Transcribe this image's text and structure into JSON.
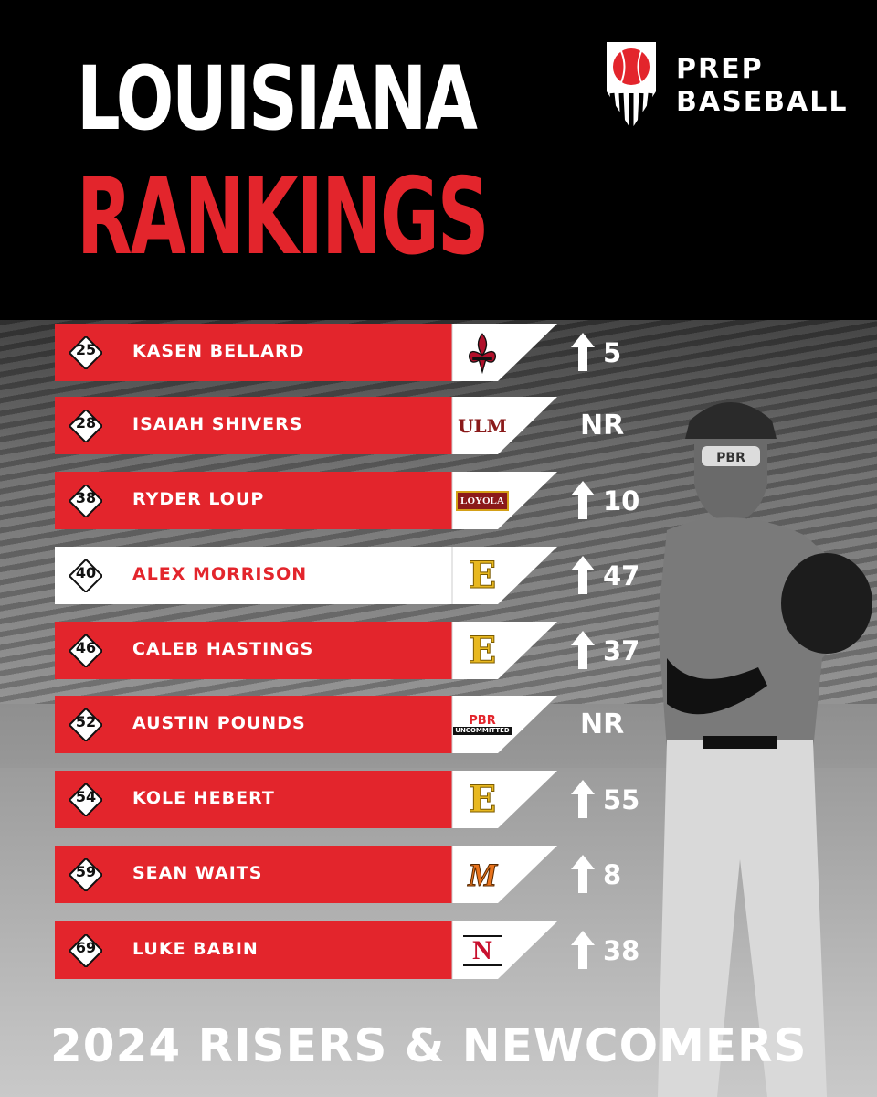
{
  "title": {
    "line1": "LOUISIANA",
    "line2": "RANKINGS"
  },
  "brand": {
    "line1": "PREP",
    "line2": "BASEBALL",
    "icon": "prep-baseball-logo"
  },
  "colors": {
    "accent": "#e3252c",
    "dark": "#000000",
    "white": "#ffffff"
  },
  "rankings": [
    {
      "rank": "25",
      "name": "KASEN BELLARD",
      "logo": "louisiana-fleur-de-lis-logo",
      "change": "5",
      "direction": "up",
      "highlight": false
    },
    {
      "rank": "28",
      "name": "ISAIAH SHIVERS",
      "logo": "ulm-logo",
      "logo_text": "ULM",
      "change": "NR",
      "direction": "none",
      "highlight": false
    },
    {
      "rank": "38",
      "name": "RYDER LOUP",
      "logo": "loyola-wolf-pack-logo",
      "logo_text": "LOYOLA",
      "change": "10",
      "direction": "up",
      "highlight": false
    },
    {
      "rank": "40",
      "name": "ALEX MORRISON",
      "logo": "old-english-e-logo",
      "logo_text": "E",
      "change": "47",
      "direction": "up",
      "highlight": true
    },
    {
      "rank": "46",
      "name": "CALEB HASTINGS",
      "logo": "old-english-e-logo",
      "logo_text": "E",
      "change": "37",
      "direction": "up",
      "highlight": false
    },
    {
      "rank": "52",
      "name": "AUSTIN POUNDS",
      "logo": "pbr-uncommitted-logo",
      "logo_text": "UNCOMMITTED",
      "change": "NR",
      "direction": "none",
      "highlight": false
    },
    {
      "rank": "54",
      "name": "KOLE HEBERT",
      "logo": "old-english-e-logo",
      "logo_text": "E",
      "change": "55",
      "direction": "up",
      "highlight": false
    },
    {
      "rank": "59",
      "name": "SEAN WAITS",
      "logo": "m-logo",
      "logo_text": "M",
      "change": "8",
      "direction": "up",
      "highlight": false
    },
    {
      "rank": "69",
      "name": "LUKE BABIN",
      "logo": "nicholls-n-logo",
      "logo_text": "N",
      "change": "38",
      "direction": "up",
      "highlight": false
    }
  ],
  "footer": "2024 RISERS & NEWCOMERS"
}
